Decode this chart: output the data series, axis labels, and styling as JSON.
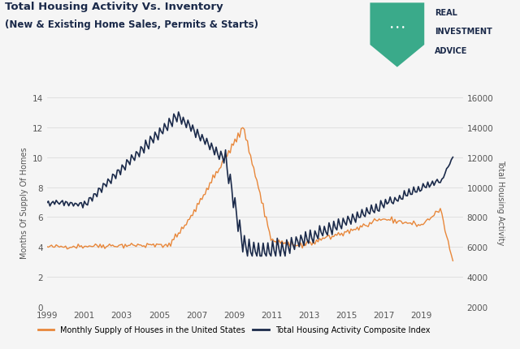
{
  "title_line1": "Total Housing Activity Vs. Inventory",
  "title_line2": "(New & Existing Home Sales, Permits & Starts)",
  "ylabel_left": "Months Of Supply Of Homes",
  "ylabel_right": "Total Housing Activity",
  "ylim_left": [
    0.0,
    14.0
  ],
  "ylim_right": [
    2000,
    16000
  ],
  "yticks_left": [
    0.0,
    2.0,
    4.0,
    6.0,
    8.0,
    10.0,
    12.0,
    14.0
  ],
  "yticks_right": [
    2000,
    4000,
    6000,
    8000,
    10000,
    12000,
    14000,
    16000
  ],
  "xtick_years": [
    1999,
    2001,
    2003,
    2005,
    2007,
    2009,
    2011,
    2013,
    2015,
    2017,
    2019
  ],
  "legend_supply": "Monthly Supply of Houses in the United States",
  "legend_activity": "Total Housing Activity Composite Index",
  "color_supply": "#E8873A",
  "color_activity": "#1B2A4A",
  "bg_color": "#F5F5F5",
  "grid_color": "#DDDDDD",
  "title_color": "#1B2A4A",
  "shield_color": "#3AAA8A"
}
